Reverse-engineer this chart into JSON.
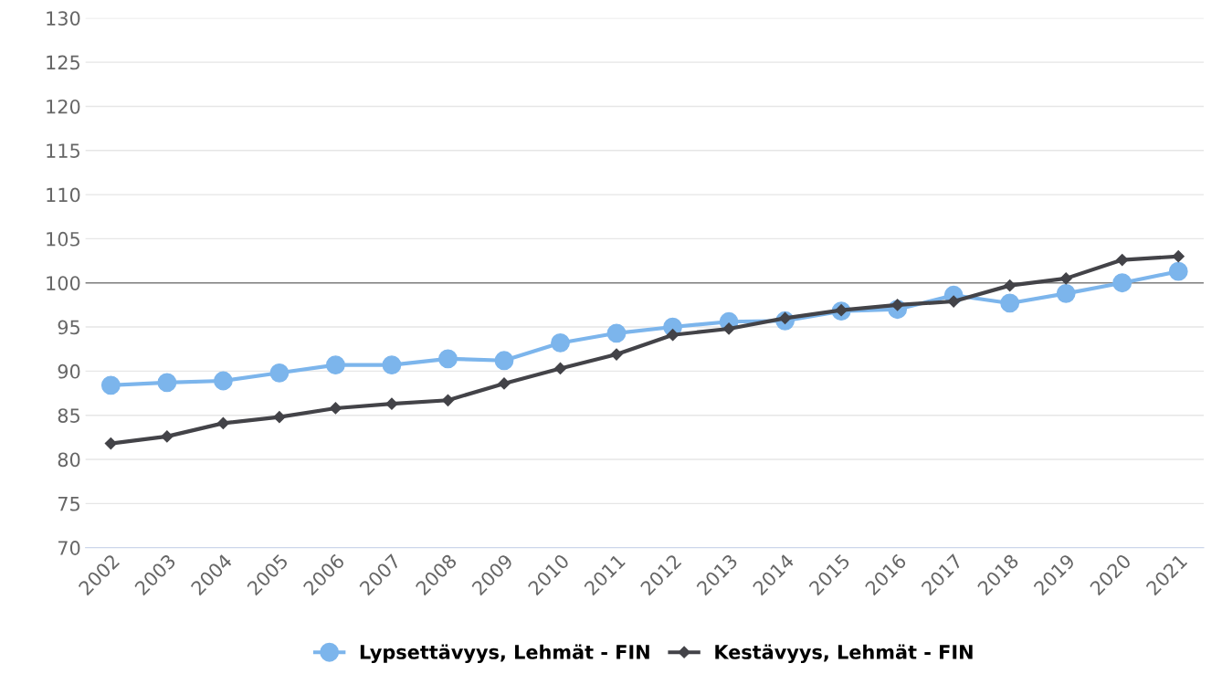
{
  "chart_data": {
    "type": "line",
    "categories": [
      "2002",
      "2003",
      "2004",
      "2005",
      "2006",
      "2007",
      "2008",
      "2009",
      "2010",
      "2011",
      "2012",
      "2013",
      "2014",
      "2015",
      "2016",
      "2017",
      "2018",
      "2019",
      "2020",
      "2021"
    ],
    "series": [
      {
        "name": "Lypsettävyys, Lehmät - FIN",
        "color": "#7cb5ec",
        "marker": "circle",
        "values": [
          88.4,
          88.7,
          88.9,
          89.8,
          90.7,
          90.7,
          91.4,
          91.2,
          93.2,
          94.3,
          95.0,
          95.6,
          95.7,
          96.8,
          97.0,
          98.6,
          97.7,
          98.8,
          100.0,
          101.3
        ]
      },
      {
        "name": "Kestävyys, Lehmät - FIN",
        "color": "#434348",
        "marker": "diamond",
        "values": [
          81.8,
          82.6,
          84.1,
          84.8,
          85.8,
          86.3,
          86.7,
          88.6,
          90.3,
          91.9,
          94.1,
          94.8,
          96.0,
          96.9,
          97.5,
          97.9,
          99.7,
          100.5,
          102.6,
          103.0
        ]
      }
    ],
    "ylim": [
      70,
      130
    ],
    "yticks": [
      70,
      75,
      80,
      85,
      90,
      95,
      100,
      105,
      110,
      115,
      120,
      125,
      130
    ],
    "ref_lines": [
      {
        "axis": "y",
        "value": 100,
        "color": "#808080"
      }
    ],
    "grid": "y",
    "legend": "bottom",
    "line_style": "solid"
  }
}
